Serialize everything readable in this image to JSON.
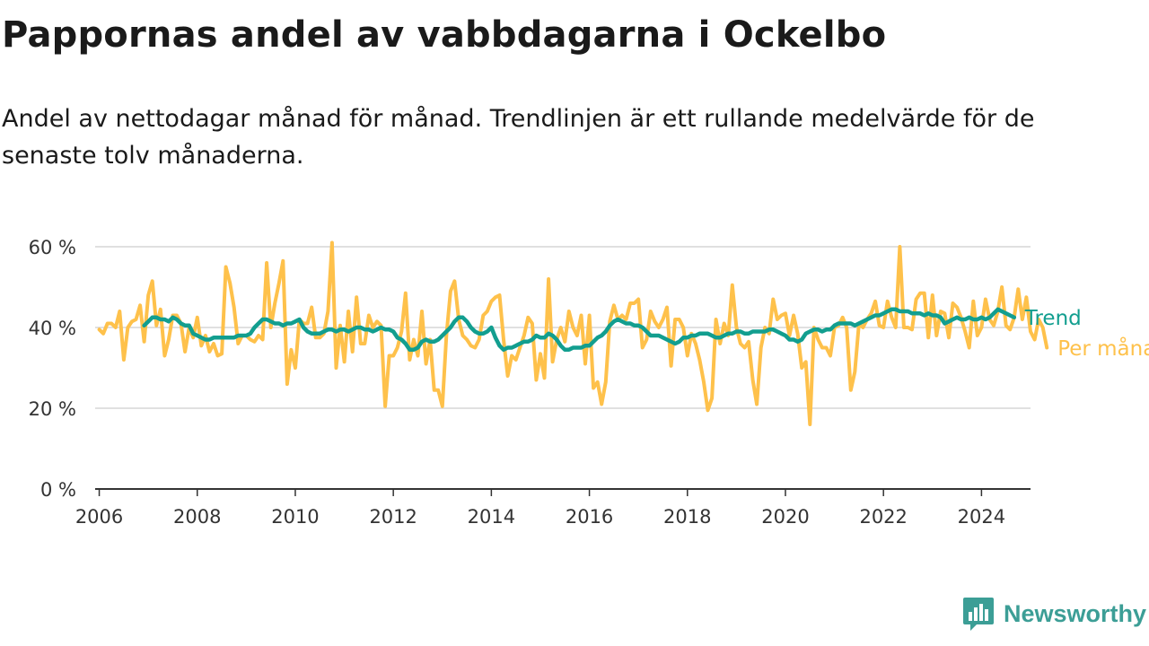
{
  "header": {
    "title": "Pappornas andel av vabbdagarna i Ockelbo",
    "subtitle": "Andel av nettodagar månad för månad. Trendlinjen är ett rullande medelvärde för de senaste tolv månaderna."
  },
  "brand": {
    "name": "Newsworthy",
    "icon": "bar-chart-speech-bubble-icon",
    "color": "#3c9e96"
  },
  "chart_data": {
    "type": "line",
    "title": "",
    "xlabel": "",
    "ylabel": "",
    "ylim": [
      0,
      60
    ],
    "xlim": [
      "2005-12-01",
      "2025-01-01"
    ],
    "y_ticks": [
      0,
      20,
      40,
      60
    ],
    "y_tick_labels": [
      "0 %",
      "20 %",
      "40 %",
      "60 %"
    ],
    "x_ticks": [
      2006,
      2008,
      2010,
      2012,
      2014,
      2016,
      2018,
      2020,
      2022,
      2024
    ],
    "x_tick_labels": [
      "2006",
      "2008",
      "2010",
      "2012",
      "2014",
      "2016",
      "2018",
      "2020",
      "2022",
      "2024"
    ],
    "grid": "horizontal",
    "legend": "direct labels at line ends (right)",
    "series": [
      {
        "name": "Trend",
        "color": "#129e8f",
        "start": "2006-12",
        "values": [
          40.5,
          41.5,
          42.5,
          42.5,
          42,
          42,
          41.5,
          42.5,
          42,
          41,
          40.5,
          40.5,
          38.5,
          38,
          37.5,
          37,
          37,
          37.5,
          37.5,
          37.5,
          37.5,
          37.5,
          37.5,
          38,
          38,
          38,
          38.5,
          40,
          41,
          42,
          42,
          41.5,
          41,
          41,
          40.5,
          41,
          41,
          41.5,
          42,
          40,
          39,
          38.5,
          38.5,
          38.5,
          39,
          39.5,
          39.5,
          39,
          39.5,
          39.5,
          39,
          39.5,
          40,
          40,
          39.5,
          39.5,
          39,
          39.5,
          40,
          39.5,
          39.5,
          39,
          37.5,
          37,
          36,
          34.5,
          34.5,
          35,
          36.5,
          37,
          36.5,
          36.5,
          37,
          38,
          39,
          40,
          41.5,
          42.5,
          42.5,
          41.5,
          40,
          39,
          38.5,
          38.5,
          39,
          40,
          37.5,
          35.5,
          34.5,
          35,
          35,
          35.5,
          36,
          36.5,
          36.5,
          37,
          38,
          37.5,
          37.5,
          38.5,
          38,
          37,
          35.5,
          34.5,
          34.5,
          35,
          35,
          35,
          35.5,
          35.5,
          36.5,
          37.5,
          38,
          39,
          40.5,
          41.5,
          42,
          41.5,
          41,
          41,
          40.5,
          40.5,
          40,
          39,
          38,
          38,
          38,
          37.5,
          37,
          36.5,
          36,
          36.5,
          37.5,
          37.5,
          38,
          38,
          38.5,
          38.5,
          38.5,
          38,
          37.5,
          37.5,
          38,
          38.5,
          38.5,
          39,
          39,
          38.5,
          38.5,
          39,
          39,
          39,
          39,
          39.5,
          39.5,
          39,
          38.5,
          38,
          37,
          37,
          36.5,
          37,
          38.5,
          39,
          39.5,
          39.5,
          39,
          39.5,
          39.5,
          40.5,
          41,
          41,
          41,
          41,
          40.5,
          41,
          41.5,
          42,
          42.5,
          43,
          43,
          43.5,
          44,
          44.5,
          44.5,
          44,
          44,
          44,
          43.5,
          43.5,
          43.5,
          43,
          43.5,
          43,
          43,
          42.5,
          41,
          41.5,
          42,
          42.5,
          42,
          42,
          42.5,
          42,
          42,
          42.5,
          42,
          42.5,
          43.5,
          44.5,
          44,
          43.5,
          43,
          42.5
        ]
      },
      {
        "name": "Per månad",
        "color": "#fec14b",
        "start": "2006-01",
        "values": [
          39.5,
          38.5,
          41,
          41,
          40,
          44,
          32,
          40,
          41.5,
          42,
          45.5,
          36.5,
          48,
          51.5,
          40.5,
          44.5,
          33,
          37,
          43,
          43,
          41,
          34,
          40,
          37.5,
          42.5,
          35.5,
          38,
          34,
          36,
          33,
          33.5,
          55,
          51,
          45,
          36,
          38,
          38,
          37,
          36.5,
          38,
          37,
          56,
          40,
          46,
          51,
          56.5,
          26,
          34.5,
          30,
          42,
          41,
          41,
          45,
          37.5,
          37.5,
          38.5,
          44,
          61,
          30,
          40.5,
          31.5,
          44,
          34,
          47.5,
          36,
          36,
          43,
          40,
          41.5,
          40.5,
          20.5,
          33,
          33,
          35,
          39,
          48.5,
          32,
          37,
          33,
          44,
          31,
          37,
          24.5,
          24.5,
          20.5,
          38,
          49,
          51.5,
          42,
          38,
          37,
          35.5,
          35,
          37,
          43,
          44,
          46.5,
          47.5,
          48,
          37,
          28,
          33,
          32,
          35,
          38,
          42.5,
          41,
          27,
          33.5,
          27.5,
          52,
          31.5,
          37,
          40,
          36.5,
          44,
          40,
          38,
          43,
          31,
          43,
          25,
          26.5,
          21,
          26.5,
          41.5,
          45.5,
          42,
          43,
          42,
          46,
          46,
          47,
          35,
          37,
          44,
          41.5,
          40,
          42,
          45,
          30.5,
          42,
          42,
          40,
          33,
          38.5,
          36,
          32,
          26.5,
          19.5,
          22.5,
          42,
          36,
          41,
          38,
          50.5,
          40,
          36,
          35,
          36.5,
          27,
          21,
          35,
          40,
          38.5,
          47,
          42,
          43,
          43.5,
          38,
          43,
          38.5,
          30,
          31.5,
          16,
          40,
          37,
          35,
          35,
          33,
          40,
          40.5,
          42.5,
          40,
          24.5,
          29,
          41,
          40,
          42,
          43.5,
          46.5,
          40.5,
          40,
          46.5,
          42.5,
          40,
          60,
          40,
          40,
          39.5,
          47,
          48.5,
          48.5,
          37.5,
          48,
          38,
          44,
          43.5,
          37.5,
          46,
          45,
          42.5,
          39,
          35,
          46.5,
          38,
          40,
          47,
          42,
          40.5,
          44,
          50,
          40.5,
          39.5,
          42.5,
          49.5,
          42,
          47.5,
          39,
          37,
          42,
          40,
          35
        ]
      }
    ],
    "series_labels": [
      {
        "text": "Trend",
        "color": "#129e8f"
      },
      {
        "text": "Per månad",
        "color": "#fec14b"
      }
    ]
  }
}
